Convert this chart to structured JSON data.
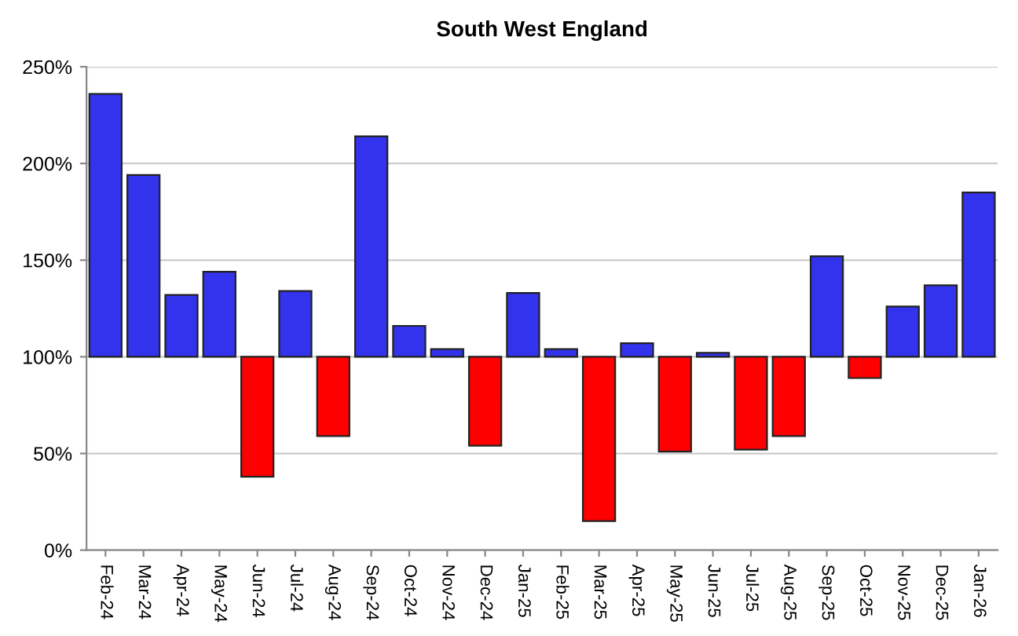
{
  "chart_data": {
    "type": "bar",
    "title": "South West England",
    "categories": [
      "Feb-24",
      "Mar-24",
      "Apr-24",
      "May-24",
      "Jun-24",
      "Jul-24",
      "Aug-24",
      "Sep-24",
      "Oct-24",
      "Nov-24",
      "Dec-24",
      "Jan-25",
      "Feb-25",
      "Mar-25",
      "Apr-25",
      "May-25",
      "Jun-25",
      "Jul-25",
      "Aug-25",
      "Sep-25",
      "Oct-25",
      "Nov-25",
      "Dec-25",
      "Jan-26"
    ],
    "base": [
      100,
      100,
      100,
      100,
      100,
      100,
      100,
      100,
      100,
      100,
      100,
      100,
      100,
      100,
      100,
      100,
      100,
      100,
      100,
      100,
      100,
      100,
      100,
      100
    ],
    "values": [
      136,
      94,
      32,
      44,
      -62,
      34,
      -41,
      114,
      16,
      4,
      -46,
      33,
      4,
      -85,
      7,
      -49,
      2,
      -48,
      -41,
      52,
      -11,
      26,
      37,
      85
    ],
    "colors": [
      "#3333ee",
      "#3333ee",
      "#3333ee",
      "#3333ee",
      "#ff0000",
      "#3333ee",
      "#ff0000",
      "#3333ee",
      "#3333ee",
      "#3333ee",
      "#ff0000",
      "#3333ee",
      "#3333ee",
      "#ff0000",
      "#3333ee",
      "#ff0000",
      "#3333ee",
      "#ff0000",
      "#ff0000",
      "#3333ee",
      "#ff0000",
      "#3333ee",
      "#3333ee",
      "#3333ee"
    ],
    "ylim": [
      0,
      250
    ],
    "yticks": [
      {
        "value": 0,
        "label": "0%"
      },
      {
        "value": 50,
        "label": "50%"
      },
      {
        "value": 100,
        "label": "100%"
      },
      {
        "value": 150,
        "label": "150%"
      },
      {
        "value": 200,
        "label": "200%"
      },
      {
        "value": 250,
        "label": "250%"
      }
    ],
    "grid": "y"
  }
}
